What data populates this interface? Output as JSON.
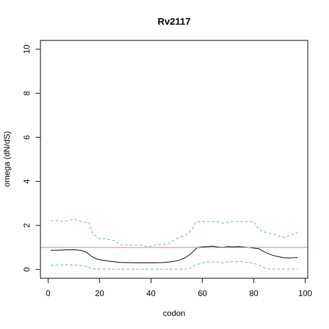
{
  "chart_data": {
    "type": "line",
    "title": "Rv2117",
    "xlabel": "codon",
    "ylabel": "omega (dN/dS)",
    "xlim": [
      -3,
      101
    ],
    "ylim": [
      -0.4,
      10.4
    ],
    "xticks": [
      0,
      20,
      40,
      60,
      80,
      100
    ],
    "yticks": [
      0,
      2,
      4,
      6,
      8,
      10
    ],
    "xtick_labels": [
      "0",
      "20",
      "40",
      "60",
      "80",
      "100"
    ],
    "ytick_labels": [
      "0",
      "2",
      "4",
      "6",
      "8",
      "10"
    ],
    "grid": false,
    "reference_line": {
      "y": 1.0,
      "color": "#cc79a7"
    },
    "series": [
      {
        "role": "omega",
        "color": "#000000",
        "style": "solid",
        "x": [
          1,
          5,
          10,
          13,
          15,
          17,
          19,
          22,
          25,
          28,
          32,
          36,
          40,
          44,
          48,
          51,
          53,
          55,
          57,
          58,
          60,
          62,
          64,
          66,
          68,
          70,
          72,
          74,
          76,
          78,
          80,
          82,
          84,
          86,
          88,
          90,
          92,
          94,
          96,
          97
        ],
        "y": [
          0.87,
          0.88,
          0.9,
          0.86,
          0.78,
          0.58,
          0.47,
          0.4,
          0.36,
          0.32,
          0.31,
          0.3,
          0.3,
          0.31,
          0.35,
          0.42,
          0.52,
          0.66,
          0.88,
          1.0,
          1.03,
          1.04,
          1.06,
          1.02,
          1.01,
          1.04,
          1.03,
          1.04,
          1.02,
          1.0,
          0.97,
          0.94,
          0.8,
          0.7,
          0.62,
          0.57,
          0.53,
          0.52,
          0.54,
          0.54
        ]
      },
      {
        "role": "upper",
        "color": "#56b4e9",
        "style": "dashed",
        "x": [
          1,
          3,
          5,
          7,
          10,
          12,
          14,
          16,
          17,
          18,
          19,
          20,
          22,
          24,
          26,
          28,
          30,
          32,
          34,
          36,
          38,
          40,
          42,
          44,
          46,
          48,
          50,
          52,
          54,
          56,
          57,
          58,
          60,
          62,
          64,
          66,
          68,
          70,
          72,
          74,
          76,
          78,
          80,
          82,
          84,
          86,
          88,
          90,
          92,
          94,
          96,
          97
        ],
        "y": [
          2.22,
          2.22,
          2.18,
          2.2,
          2.28,
          2.22,
          2.15,
          2.12,
          1.7,
          1.55,
          1.5,
          1.4,
          1.4,
          1.35,
          1.3,
          1.12,
          1.12,
          1.1,
          1.1,
          1.1,
          1.05,
          1.05,
          1.12,
          1.15,
          1.15,
          1.25,
          1.4,
          1.5,
          1.6,
          1.8,
          2.1,
          2.15,
          2.18,
          2.18,
          2.18,
          2.17,
          2.1,
          2.15,
          2.18,
          2.18,
          2.18,
          2.18,
          2.18,
          1.8,
          1.7,
          1.65,
          1.6,
          1.5,
          1.45,
          1.55,
          1.6,
          1.68
        ]
      },
      {
        "role": "lower",
        "color": "#56b4e9",
        "style": "dashed",
        "x": [
          1,
          3,
          5,
          8,
          10,
          13,
          15,
          16,
          17,
          20,
          25,
          30,
          35,
          40,
          45,
          50,
          52,
          54,
          55,
          56,
          57,
          58,
          60,
          62,
          64,
          66,
          68,
          70,
          72,
          74,
          76,
          78,
          80,
          82,
          84,
          86,
          88,
          90,
          94,
          97
        ],
        "y": [
          0.18,
          0.2,
          0.2,
          0.22,
          0.2,
          0.18,
          0.15,
          0.08,
          0.02,
          0.02,
          0.01,
          0.01,
          0.01,
          0.01,
          0.01,
          0.01,
          0.01,
          0.01,
          0.05,
          0.1,
          0.18,
          0.22,
          0.3,
          0.35,
          0.34,
          0.35,
          0.3,
          0.35,
          0.36,
          0.36,
          0.36,
          0.32,
          0.28,
          0.2,
          0.08,
          0.03,
          0.02,
          0.02,
          0.02,
          0.02
        ]
      }
    ]
  }
}
